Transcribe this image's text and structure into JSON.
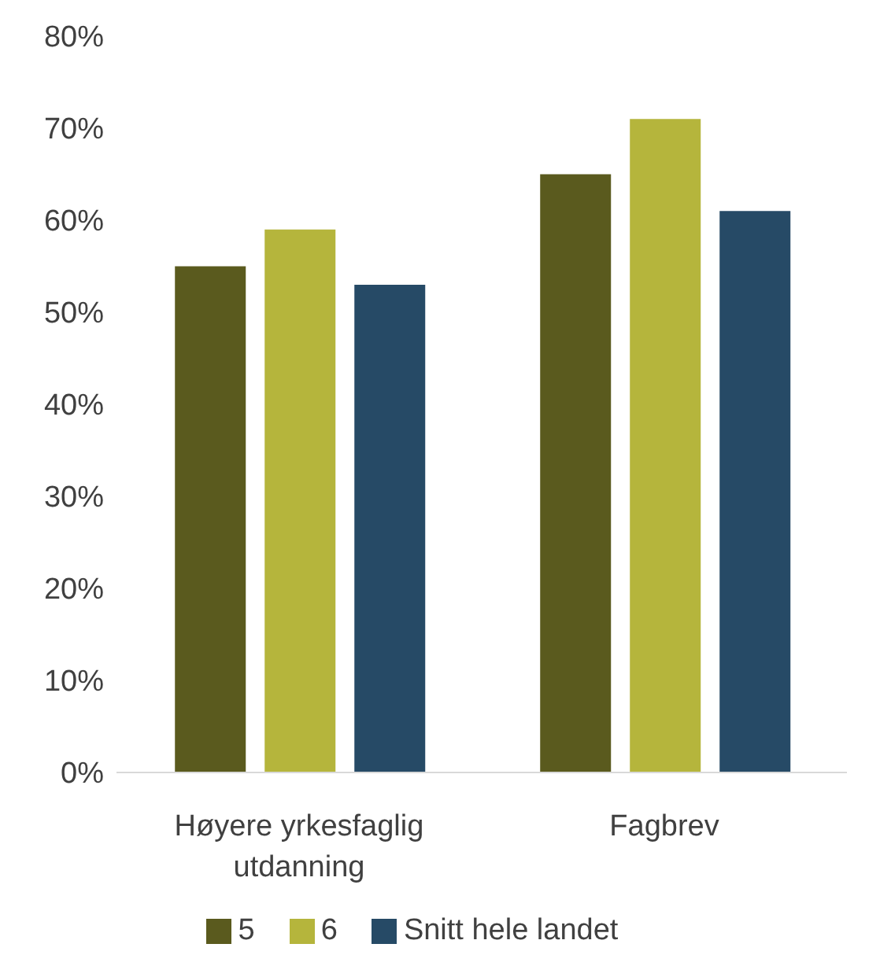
{
  "chart_data": {
    "type": "bar",
    "categories": [
      "Høyere yrkesfaglig utdanning",
      "Fagbrev"
    ],
    "series": [
      {
        "name": "5",
        "color": "#5a5a1e",
        "values": [
          55,
          65
        ]
      },
      {
        "name": "6",
        "color": "#b5b53c",
        "values": [
          59,
          71
        ]
      },
      {
        "name": "Snitt hele landet",
        "color": "#264a66",
        "values": [
          53,
          61
        ]
      }
    ],
    "ylim": [
      0,
      80
    ],
    "yticks": [
      {
        "value": 0,
        "label": "0%"
      },
      {
        "value": 10,
        "label": "10%"
      },
      {
        "value": 20,
        "label": "20%"
      },
      {
        "value": 30,
        "label": "30%"
      },
      {
        "value": 40,
        "label": "40%"
      },
      {
        "value": 50,
        "label": "50%"
      },
      {
        "value": 60,
        "label": "60%"
      },
      {
        "value": 70,
        "label": "70%"
      },
      {
        "value": 80,
        "label": "80%"
      }
    ],
    "grid": false,
    "legend": "bottom"
  }
}
